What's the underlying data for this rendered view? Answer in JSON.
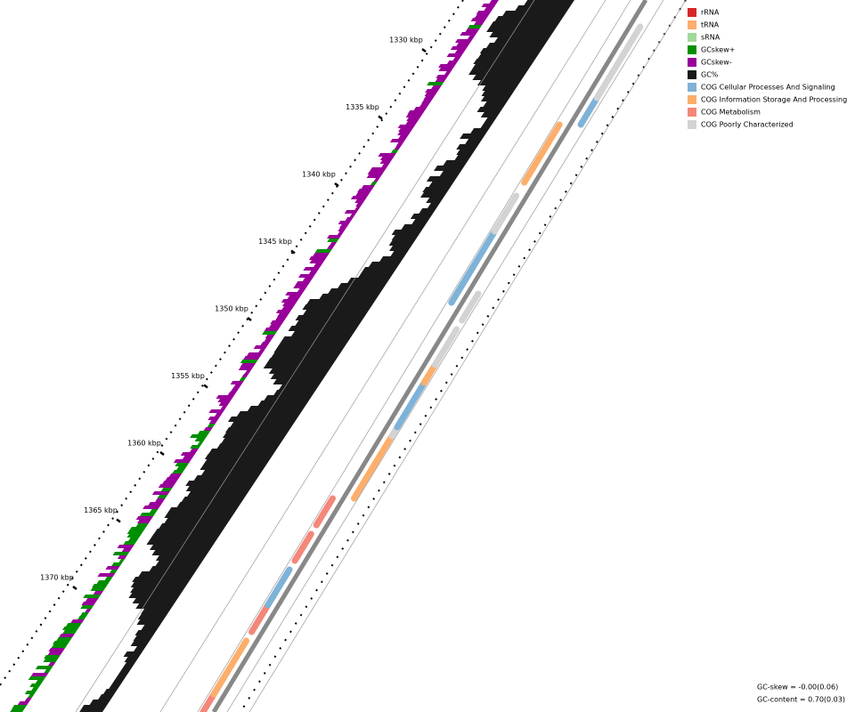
{
  "legend": [
    {
      "label": "rRNA",
      "color": "#d62728"
    },
    {
      "label": "tRNA",
      "color": "#fdae6b"
    },
    {
      "label": "sRNA",
      "color": "#a1d99b"
    },
    {
      "label": "GCskew+",
      "color": "#008f00"
    },
    {
      "label": "GCskew-",
      "color": "#990099"
    },
    {
      "label": "GC%",
      "color": "#1a1a1a"
    },
    {
      "label": "COG Cellular Processes And Signaling",
      "color": "#7fb2d8"
    },
    {
      "label": "COG Information Storage And Processing",
      "color": "#fdae6b"
    },
    {
      "label": "COG Metabolism",
      "color": "#f4877a"
    },
    {
      "label": "COG Poorly Characterized",
      "color": "#d3d3d3"
    }
  ],
  "ruler": {
    "labels": [
      "1330 kbp",
      "1335 kbp",
      "1340 kbp",
      "1345 kbp",
      "1350 kbp",
      "1355 kbp",
      "1360 kbp",
      "1365 kbp",
      "1370 kbp"
    ]
  },
  "stats": {
    "gc_skew": "GC-skew = -0.00(0.06)",
    "gc_content": "GC-content = 0.70(0.03)"
  }
}
